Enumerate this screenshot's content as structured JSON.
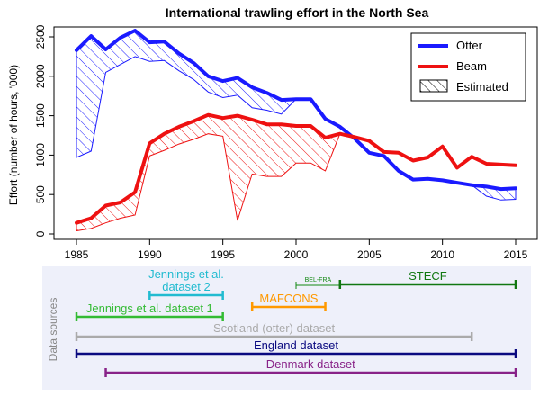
{
  "chart_data": [
    {
      "type": "line",
      "title": "International trawling effort in the North Sea",
      "xlabel": "",
      "ylabel": "Effort (number of hours, '000)",
      "xlim": [
        1985,
        2015
      ],
      "ylim": [
        0,
        2500
      ],
      "x_ticks": [
        "1985",
        "1990",
        "1995",
        "2000",
        "2005",
        "2010",
        "2015"
      ],
      "y_ticks": [
        "0",
        "500",
        "1000",
        "1500",
        "2000",
        "2500"
      ],
      "grid": false,
      "legend_position": "top-right",
      "legend": [
        "Otter",
        "Beam",
        "Estimated"
      ],
      "colors": {
        "otter": "#1a1aff",
        "beam": "#ee1111",
        "estimated": "#000000"
      },
      "series": [
        {
          "name": "Otter",
          "x": [
            1985,
            1986,
            1987,
            1988,
            1989,
            1990,
            1991,
            1992,
            1993,
            1994,
            1995,
            1996,
            1997,
            1998,
            1999,
            2000,
            2001,
            2002,
            2003,
            2004,
            2005,
            2006,
            2007,
            2008,
            2009,
            2010,
            2011,
            2012,
            2013,
            2014,
            2015
          ],
          "y": [
            2330,
            2510,
            2340,
            2490,
            2580,
            2430,
            2440,
            2290,
            2170,
            2000,
            1940,
            1980,
            1860,
            1790,
            1700,
            1710,
            1710,
            1460,
            1360,
            1210,
            1030,
            990,
            800,
            690,
            700,
            680,
            650,
            620,
            600,
            570,
            580
          ]
        },
        {
          "name": "Beam",
          "x": [
            1985,
            1986,
            1987,
            1988,
            1989,
            1990,
            1991,
            1992,
            1993,
            1994,
            1995,
            1996,
            1997,
            1998,
            1999,
            2000,
            2001,
            2002,
            2003,
            2004,
            2005,
            2006,
            2007,
            2008,
            2009,
            2010,
            2011,
            2012,
            2013,
            2014,
            2015
          ],
          "y": [
            140,
            200,
            360,
            400,
            530,
            1150,
            1270,
            1360,
            1430,
            1510,
            1470,
            1500,
            1450,
            1390,
            1390,
            1370,
            1370,
            1220,
            1270,
            1230,
            1180,
            1040,
            1030,
            930,
            970,
            1110,
            840,
            980,
            890,
            880,
            870
          ]
        }
      ],
      "estimated_regions": [
        {
          "series": "Otter",
          "x": [
            1985,
            1986,
            1987,
            1988,
            1989,
            1990,
            1991,
            1992,
            1993,
            1994,
            1995,
            1996,
            1997,
            1998,
            1999,
            2000
          ],
          "lower": [
            970,
            1050,
            2050,
            2150,
            2250,
            2190,
            2200,
            2070,
            1960,
            1800,
            1730,
            1760,
            1600,
            1570,
            1520,
            1710
          ]
        },
        {
          "series": "Otter",
          "x": [
            2012,
            2013,
            2014,
            2015
          ],
          "lower": [
            620,
            480,
            430,
            440
          ]
        },
        {
          "series": "Beam",
          "x": [
            1985,
            1986,
            1987,
            1988,
            1989,
            1990,
            1991,
            1992,
            1993,
            1994,
            1995,
            1996,
            1997,
            1998,
            1999,
            2000,
            2001,
            2002,
            2003
          ],
          "lower": [
            40,
            70,
            140,
            200,
            240,
            990,
            1060,
            1140,
            1200,
            1270,
            1240,
            170,
            760,
            730,
            730,
            900,
            900,
            800,
            1270
          ]
        }
      ]
    },
    {
      "type": "timeline",
      "title": "",
      "panel_label": "Data sources",
      "xlim": [
        1985,
        2015
      ],
      "datasets": [
        {
          "name": "Jennings et al. dataset 2",
          "start": 1990,
          "end": 1995,
          "color": "#22bbd0"
        },
        {
          "name": "BEL-FRA",
          "start": 2000,
          "end": 2003,
          "color": "#118811"
        },
        {
          "name": "STECF",
          "start": 2003,
          "end": 2015,
          "color": "#117711"
        },
        {
          "name": "MAFCONS",
          "start": 1997,
          "end": 2002,
          "color": "#ff9900"
        },
        {
          "name": "Jennings et al. dataset 1",
          "start": 1985,
          "end": 1995,
          "color": "#33bb33"
        },
        {
          "name": "Scotland (otter) dataset",
          "start": 1985,
          "end": 2012,
          "color": "#aaaaaa"
        },
        {
          "name": "England dataset",
          "start": 1985,
          "end": 2015,
          "color": "#0a0a80"
        },
        {
          "name": "Denmark dataset",
          "start": 1987,
          "end": 2015,
          "color": "#882288"
        }
      ]
    }
  ]
}
